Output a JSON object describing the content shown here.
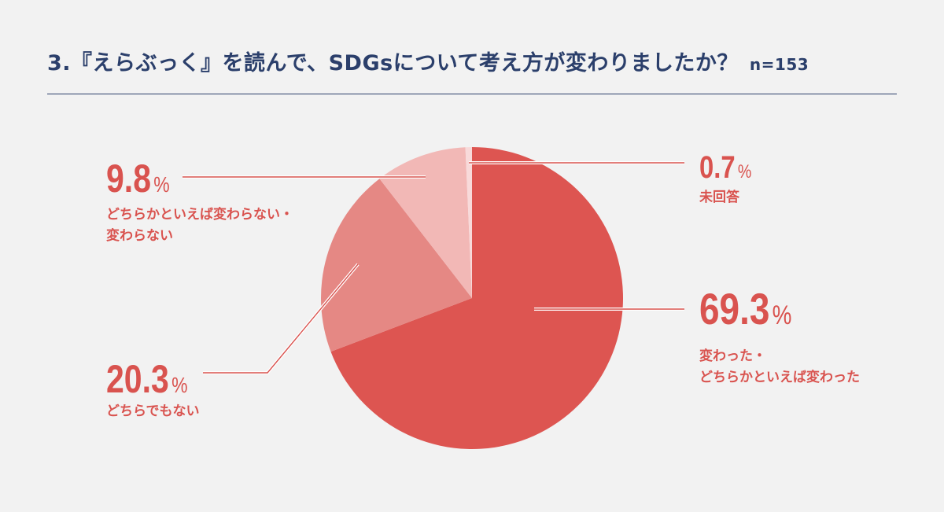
{
  "title": {
    "text": "3.『えらぶっく』を読んで、SDGsについて考え方が変わりましたか？",
    "n": "n=153"
  },
  "colors": {
    "title": "#2b3f6b",
    "rule": "#2b3f6b",
    "label": "#d9534f",
    "leader": "#d9534f",
    "slices": [
      "#dd5551",
      "#e58884",
      "#f2b8b6",
      "#f8dada"
    ]
  },
  "chart_data": {
    "type": "pie",
    "start_angle_deg": 0,
    "direction": "clockwise",
    "slices": [
      {
        "label": "変わった・どちらかといえば変わった",
        "value": 69.3,
        "value_text": "69.3",
        "unit": "%",
        "label_lines": [
          "変わった・",
          "どちらかといえば変わった"
        ]
      },
      {
        "label": "どちらでもない",
        "value": 20.3,
        "value_text": "20.3",
        "unit": "%",
        "label_lines": [
          "どちらでもない"
        ]
      },
      {
        "label": "どちらかといえば変わらない・変わらない",
        "value": 9.8,
        "value_text": "9.8",
        "unit": "%",
        "label_lines": [
          "どちらかといえば変わらない・",
          "変わらない"
        ]
      },
      {
        "label": "未回答",
        "value": 0.7,
        "value_text": "0.7",
        "unit": "%",
        "label_lines": [
          "未回答"
        ]
      }
    ]
  }
}
